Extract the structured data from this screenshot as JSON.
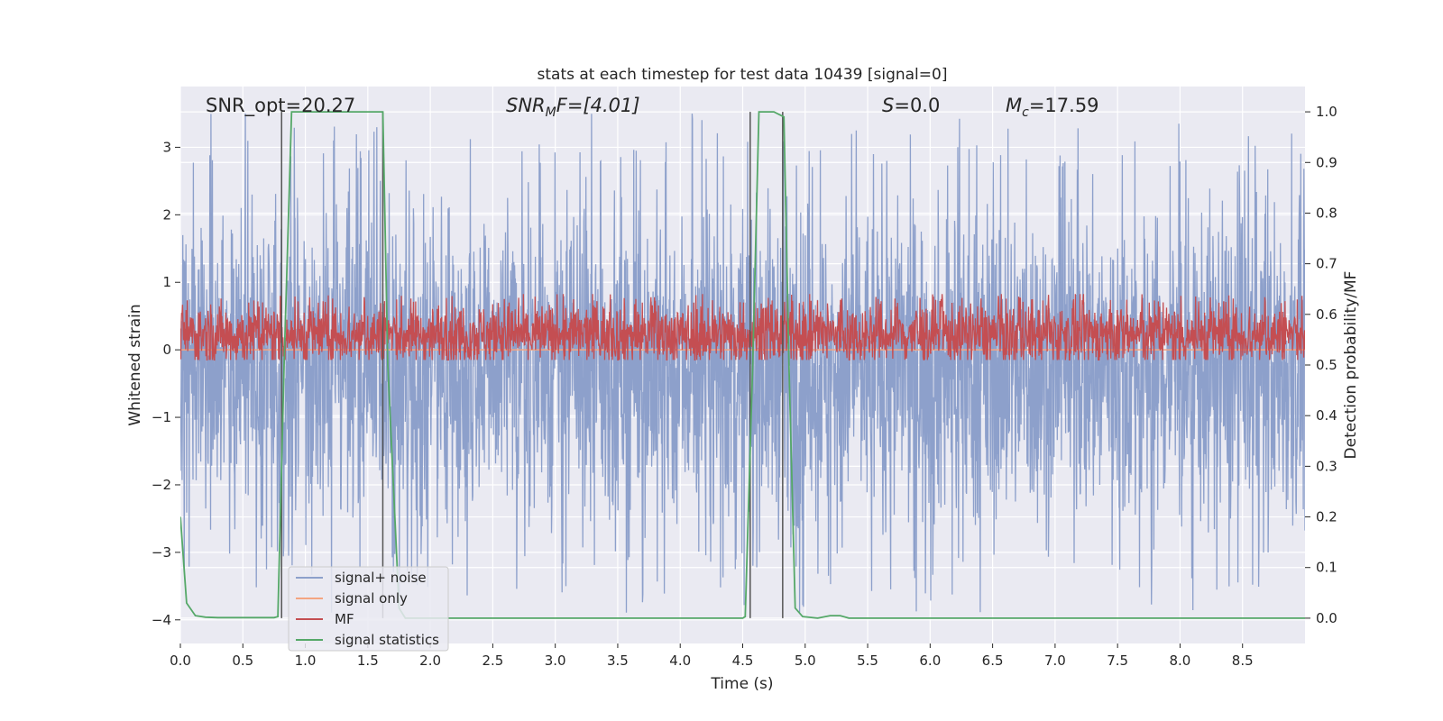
{
  "chart_data": {
    "type": "line",
    "title": "stats at each timestep for test data 10439 [signal=0]",
    "xlabel": "Time (s)",
    "ylabel_left": "Whitened strain",
    "ylabel_right": "Detection probability/MF",
    "xlim": [
      0.0,
      9.0
    ],
    "ylim_left": [
      -4.35,
      3.9
    ],
    "ylim_right": [
      -0.05,
      1.05
    ],
    "x_ticks": [
      "0.0",
      "0.5",
      "1.0",
      "1.5",
      "2.0",
      "2.5",
      "3.0",
      "3.5",
      "4.0",
      "4.5",
      "5.0",
      "5.5",
      "6.0",
      "6.5",
      "7.0",
      "7.5",
      "8.0",
      "8.5"
    ],
    "y_ticks_left": [
      "−4",
      "−3",
      "−2",
      "−1",
      "0",
      "1",
      "2",
      "3"
    ],
    "y_ticks_right": [
      "0.0",
      "0.1",
      "0.2",
      "0.3",
      "0.4",
      "0.5",
      "0.6",
      "0.7",
      "0.8",
      "0.9",
      "1.0"
    ],
    "grid": true,
    "legend_position": "lower-left",
    "colors": {
      "signal_noise": "#8da0cb",
      "signal_only": "#f4a582",
      "mf": "#c44e52",
      "signal_statistics": "#55a868",
      "vlines": "#555555",
      "background": "#eaeaf2"
    },
    "series": [
      {
        "name": "signal+ noise",
        "axis": "left",
        "style": "dense noise band",
        "typical_range": [
          -1.8,
          1.3
        ],
        "max_range": [
          -3.9,
          3.5
        ]
      },
      {
        "name": "signal only",
        "axis": "left",
        "values_constant": 0.0
      },
      {
        "name": "MF",
        "axis": "right",
        "style": "dense noise band",
        "typical_range": [
          0.52,
          0.6
        ],
        "max_range": [
          0.51,
          0.64
        ]
      },
      {
        "name": "signal statistics",
        "axis": "right",
        "x": [
          0.0,
          0.05,
          0.12,
          0.2,
          0.3,
          0.75,
          0.78,
          0.83,
          0.89,
          0.92,
          1.55,
          1.62,
          1.66,
          1.75,
          1.8,
          4.5,
          4.52,
          4.58,
          4.63,
          4.65,
          4.75,
          4.83,
          4.87,
          4.92,
          4.98,
          5.1,
          5.2,
          5.28,
          5.35,
          5.45,
          9.0
        ],
        "values": [
          0.2,
          0.03,
          0.005,
          0.002,
          0.001,
          0.001,
          0.003,
          0.5,
          1.0,
          1.0,
          1.0,
          1.0,
          0.5,
          0.02,
          0.0,
          0.0,
          0.003,
          0.5,
          1.0,
          1.0,
          1.0,
          0.99,
          0.5,
          0.02,
          0.003,
          0.0,
          0.005,
          0.005,
          0.0,
          0.0,
          0.0
        ]
      }
    ],
    "vertical_lines": [
      0.81,
      1.62,
      4.56,
      4.82
    ],
    "annotations": [
      "SNR_opt=20.27",
      "SNR_MF=[4.01]",
      "S=0.0",
      "M_c=17.59"
    ]
  },
  "annotations_text": {
    "snr_opt": "SNR_opt=20.27",
    "snr_mf_main": "SNR",
    "snr_mf_sub": "M",
    "snr_mf_tail": "F=[4.01]",
    "s_main": "S",
    "s_tail": "=0.0",
    "mc_main": "M",
    "mc_sub": "c",
    "mc_tail": "=17.59"
  }
}
